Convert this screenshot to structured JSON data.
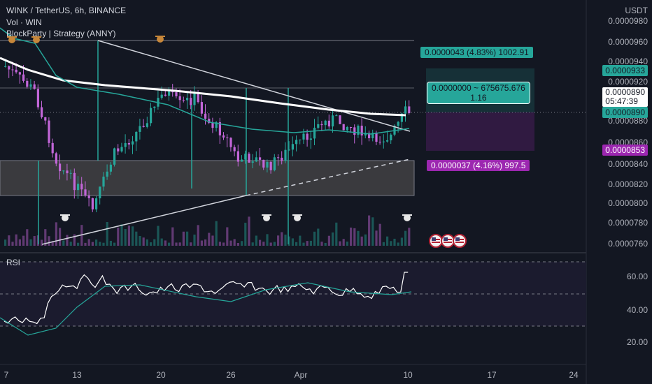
{
  "header": {
    "symbol_line": "WINK / TetherUS, 6h, BINANCE",
    "volume_label": "Vol · WIN",
    "strategy_label": "BlockParty | Strategy (ANNY)",
    "currency": "USDT"
  },
  "price_axis": {
    "labels": [
      "0.0000980",
      "0.0000960",
      "0.0000940",
      "0.0000920",
      "0.0000880",
      "0.0000860",
      "0.0000840",
      "0.0000820",
      "0.0000800",
      "0.0000780",
      "0.0000760"
    ],
    "highlight_green_top": "0.0000933",
    "current_price": "0.0000890",
    "countdown": "05:47:39",
    "highlight_green_bottom": "0.0000890",
    "highlight_purple": "0.0000853"
  },
  "rsi_axis": {
    "title": "RSI",
    "labels": [
      "60.00",
      "40.00",
      "20.00"
    ]
  },
  "time_axis": {
    "labels": [
      "7",
      "13",
      "20",
      "26",
      "Apr",
      "10",
      "17",
      "24"
    ]
  },
  "position_tool": {
    "target_label": "0.0000043 (4.83%) 1002.91",
    "center_label_1": "0.0000000 ~ 675675.676",
    "center_label_2": "1.16",
    "stop_label": "0.0000037 (4.16%) 997.5"
  },
  "colors": {
    "background": "#131722",
    "up": "#26a69a",
    "down": "#c266d8",
    "target_zone": "#26a69a",
    "stop_zone": "#9c27b0",
    "ma_white": "#ffffff",
    "ma_teal": "#26a69a",
    "rsi_line": "#ffffff",
    "rsi_ma": "#26a69a"
  },
  "icons": [
    "bull-face-icon",
    "cow-face-icon",
    "us-flag-event-icon"
  ]
}
